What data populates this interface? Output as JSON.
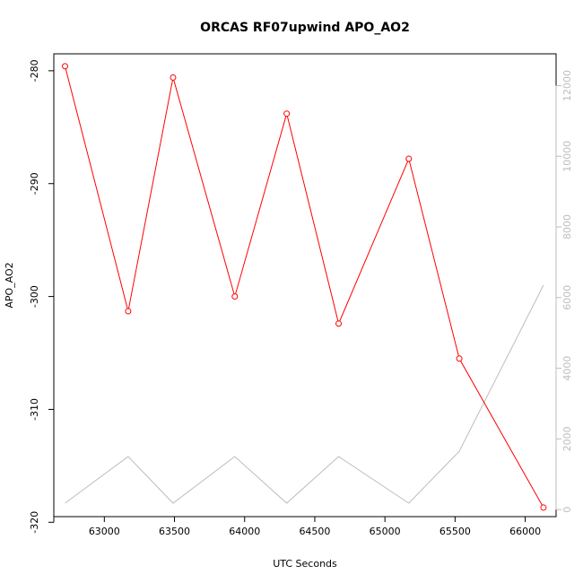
{
  "chart_data": {
    "type": "line",
    "title": "ORCAS RF07upwind APO_AO2",
    "xlabel": "UTC Seconds",
    "ylabel": "APO_AO2",
    "xlim": [
      62640,
      66220
    ],
    "ylim": [
      -319.5,
      -278.5
    ],
    "y2lim": [
      -200,
      12900
    ],
    "x_ticks": [
      63000,
      63500,
      64000,
      64500,
      65000,
      65500,
      66000
    ],
    "y_ticks": [
      -280,
      -290,
      -300,
      -310,
      -320
    ],
    "y2_ticks": [
      0,
      2000,
      4000,
      6000,
      8000,
      10000,
      12000
    ],
    "x_tick_labels": [
      "63000",
      "63500",
      "64000",
      "64500",
      "65000",
      "65500",
      "66000"
    ],
    "y_tick_labels": [
      "-280",
      "-290",
      "-300",
      "-310",
      "-320"
    ],
    "y2_tick_labels": [
      "0",
      "2000",
      "4000",
      "6000",
      "8000",
      "10000",
      "12000"
    ],
    "grid": false,
    "series": [
      {
        "axis": "left",
        "color": "#ff0000",
        "marker": "open-circle",
        "x": [
          62720,
          63170,
          63490,
          63930,
          64300,
          64670,
          65170,
          65530,
          66130
        ],
        "y": [
          -279.6,
          -301.3,
          -280.6,
          -300.0,
          -283.8,
          -302.4,
          -287.8,
          -305.5,
          -318.7
        ]
      },
      {
        "axis": "right",
        "color": "#bdbdbd",
        "marker": "none",
        "x": [
          62720,
          63170,
          63490,
          63930,
          64300,
          64670,
          65170,
          65530,
          66130
        ],
        "y": [
          180,
          1500,
          180,
          1500,
          180,
          1500,
          180,
          1650,
          6350
        ]
      }
    ]
  }
}
